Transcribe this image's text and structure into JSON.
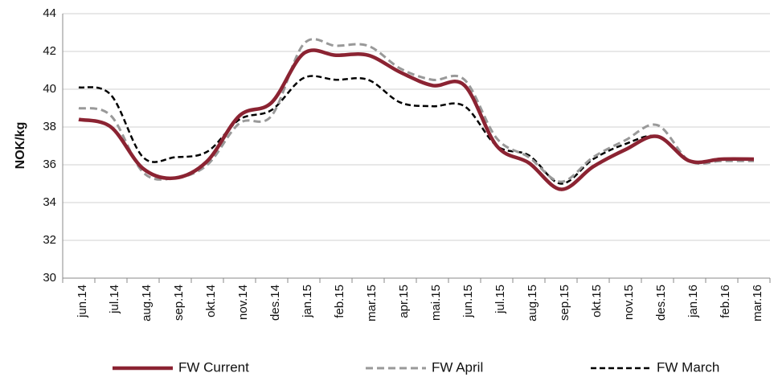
{
  "chart_data": {
    "type": "line",
    "y_label": "NOK/kg",
    "categories": [
      "jun.14",
      "jul.14",
      "aug.14",
      "sep.14",
      "okt.14",
      "nov.14",
      "des.14",
      "jan.15",
      "feb.15",
      "mar.15",
      "apr.15",
      "mai.15",
      "jun.15",
      "jul.15",
      "aug.15",
      "sep.15",
      "okt.15",
      "nov.15",
      "des.15",
      "jan.16",
      "feb.16",
      "mar.16"
    ],
    "series": [
      {
        "name": "FW Current",
        "color": "#8b2332",
        "values": [
          38.4,
          38.0,
          35.8,
          35.3,
          36.2,
          38.6,
          39.3,
          41.9,
          41.8,
          41.8,
          40.9,
          40.2,
          40.2,
          37.0,
          36.1,
          34.7,
          35.9,
          36.8,
          37.5,
          36.2,
          36.3,
          36.3
        ]
      },
      {
        "name": "FW April",
        "color": "#999999",
        "values": [
          39.0,
          38.6,
          35.6,
          35.3,
          36.0,
          38.2,
          38.6,
          42.4,
          42.3,
          42.3,
          41.1,
          40.5,
          40.5,
          37.4,
          36.4,
          35.1,
          36.4,
          37.3,
          38.1,
          36.2,
          36.2,
          36.2
        ]
      },
      {
        "name": "FW March",
        "color": "#000000",
        "values": [
          40.1,
          39.7,
          36.4,
          36.4,
          36.7,
          38.4,
          38.9,
          40.6,
          40.5,
          40.5,
          39.3,
          39.1,
          39.1,
          37.0,
          36.5,
          35.0,
          36.3,
          37.1,
          37.5,
          36.2,
          36.3,
          36.3
        ]
      }
    ],
    "ylim": [
      30,
      44
    ],
    "yticks": [
      30,
      32,
      34,
      36,
      38,
      40,
      42,
      44
    ],
    "grid": true,
    "legend": "bottom"
  }
}
